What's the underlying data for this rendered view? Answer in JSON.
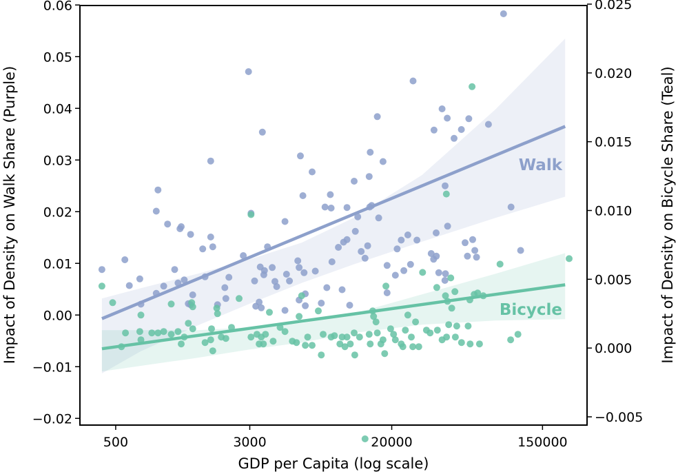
{
  "chart_data": {
    "type": "scatter",
    "title": "",
    "xlabel": "GDP per Capita (log scale)",
    "ylabel_left": "Impact of Density on Walk Share (Purple)",
    "ylabel_right": "Impact of Density on Bicycle Share (Teal)",
    "x_scale": "log",
    "xlim": [
      310,
      272000
    ],
    "ylim_left": [
      -0.0213,
      0.0599
    ],
    "ylim_right": [
      -0.0056,
      0.0249
    ],
    "x_ticks": [
      500,
      3000,
      20000,
      150000
    ],
    "x_tick_labels": [
      "500",
      "3000",
      "20000",
      "150000"
    ],
    "y_left_ticks": [
      -0.02,
      -0.01,
      0.0,
      0.01,
      0.02,
      0.03,
      0.04,
      0.05,
      0.06
    ],
    "y_left_tick_labels": [
      "−0.02",
      "−0.01",
      "0.00",
      "0.01",
      "0.02",
      "0.03",
      "0.04",
      "0.05",
      "0.06"
    ],
    "y_right_ticks": [
      -0.005,
      0.0,
      0.005,
      0.01,
      0.015,
      0.02,
      0.025
    ],
    "y_right_tick_labels": [
      "−0.005",
      "0.000",
      "0.005",
      "0.010",
      "0.015",
      "0.020",
      "0.025"
    ],
    "grid": false,
    "legend": "inline labels at right end of regression lines",
    "colors": {
      "walk": "#8da0cb",
      "bicycle": "#66c2a5"
    },
    "series": [
      {
        "name": "Walk",
        "axis": "left",
        "label": "Walk",
        "regression": {
          "x": [
            416,
            203000
          ],
          "y": [
            -0.0007,
            0.0365
          ]
        },
        "ci_band": {
          "x": [
            416,
            700,
            1500,
            3000,
            6000,
            12000,
            30000,
            80000,
            203000
          ],
          "lower": [
            -0.0113,
            -0.007,
            -0.002,
            0.0022,
            0.0062,
            0.0098,
            0.0142,
            0.0188,
            0.0229
          ],
          "upper": [
            0.0032,
            0.0052,
            0.008,
            0.0108,
            0.014,
            0.0188,
            0.0271,
            0.0398,
            0.0535
          ]
        },
        "points": [
          [
            416,
            0.0088
          ],
          [
            565,
            0.0107
          ],
          [
            600,
            0.0057
          ],
          [
            690,
            0.007
          ],
          [
            700,
            0.0021
          ],
          [
            860,
            0.0042
          ],
          [
            860,
            0.0201
          ],
          [
            880,
            0.0242
          ],
          [
            950,
            0.0056
          ],
          [
            1000,
            0.0176
          ],
          [
            1100,
            0.0088
          ],
          [
            1150,
            0.0062
          ],
          [
            1180,
            0.0167
          ],
          [
            1200,
            0.0171
          ],
          [
            1250,
            0.0068
          ],
          [
            1320,
            0.0022
          ],
          [
            1360,
            0.0156
          ],
          [
            1360,
            0.002
          ],
          [
            1400,
            0.0039
          ],
          [
            1600,
            0.0128
          ],
          [
            1650,
            0.0074
          ],
          [
            1780,
            0.0151
          ],
          [
            1780,
            0.0298
          ],
          [
            1830,
            0.0132
          ],
          [
            1950,
            0.002
          ],
          [
            2150,
            0.0053
          ],
          [
            2180,
            0.0032
          ],
          [
            2270,
            0.0073
          ],
          [
            2750,
            0.0115
          ],
          [
            2950,
            0.0471
          ],
          [
            3050,
            0.0197
          ],
          [
            3200,
            0.0066
          ],
          [
            3250,
            0.0017
          ],
          [
            3400,
            0.0025
          ],
          [
            3450,
            0.0093
          ],
          [
            3500,
            0.0014
          ],
          [
            3550,
            0.0354
          ],
          [
            3620,
            0.0078
          ],
          [
            3650,
            0.0086
          ],
          [
            3800,
            0.0132
          ],
          [
            4050,
            0.0092
          ],
          [
            4200,
            0.0065
          ],
          [
            4300,
            0.0055
          ],
          [
            4800,
            0.0009
          ],
          [
            4800,
            0.0181
          ],
          [
            4900,
            0.0079
          ],
          [
            5100,
            0.0066
          ],
          [
            5700,
            0.0105
          ],
          [
            5800,
            0.0092
          ],
          [
            5800,
            0.0029
          ],
          [
            5900,
            0.0308
          ],
          [
            6100,
            0.0231
          ],
          [
            6200,
            0.0082
          ],
          [
            6300,
            0.0041
          ],
          [
            6300,
            0.0018
          ],
          [
            6900,
            0.0277
          ],
          [
            7200,
            0.0085
          ],
          [
            7800,
            0.0023
          ],
          [
            8200,
            0.0209
          ],
          [
            8400,
            0.0053
          ],
          [
            8800,
            0.0233
          ],
          [
            8900,
            0.0207
          ],
          [
            9000,
            0.0103
          ],
          [
            9800,
            0.0131
          ],
          [
            10300,
            0.0049
          ],
          [
            10500,
            0.0141
          ],
          [
            11000,
            0.0146
          ],
          [
            11000,
            0.0208
          ],
          [
            11400,
            0.0019
          ],
          [
            12100,
            0.0259
          ],
          [
            12300,
            0.0162
          ],
          [
            12700,
            0.019
          ],
          [
            13300,
            0.0123
          ],
          [
            14000,
            0.011
          ],
          [
            14500,
            0.0134
          ],
          [
            14800,
            0.0268
          ],
          [
            14900,
            0.0209
          ],
          [
            15000,
            0.0315
          ],
          [
            15300,
            0.0212
          ],
          [
            16500,
            0.0384
          ],
          [
            16800,
            0.0188
          ],
          [
            17800,
            0.0297
          ],
          [
            18800,
            0.0096
          ],
          [
            18800,
            0.0043
          ],
          [
            21000,
            0.0077
          ],
          [
            21500,
            0.0128
          ],
          [
            22700,
            0.0145
          ],
          [
            23500,
            0.0086
          ],
          [
            24800,
            0.0155
          ],
          [
            25700,
            0.0098
          ],
          [
            26600,
            0.0453
          ],
          [
            28000,
            0.0145
          ],
          [
            33900,
            0.0119
          ],
          [
            35000,
            0.0108
          ],
          [
            35200,
            0.0358
          ],
          [
            36200,
            0.0159
          ],
          [
            36300,
            0.0114
          ],
          [
            37500,
            0.0082
          ],
          [
            39200,
            0.0399
          ],
          [
            40700,
            0.0067
          ],
          [
            40800,
            0.025
          ],
          [
            41000,
            0.008
          ],
          [
            42000,
            0.0381
          ],
          [
            42200,
            0.0172
          ],
          [
            46000,
            0.0342
          ],
          [
            50700,
            0.0359
          ],
          [
            53300,
            0.014
          ],
          [
            55000,
            0.0114
          ],
          [
            56000,
            0.038
          ],
          [
            59000,
            0.0146
          ],
          [
            60700,
            0.0125
          ],
          [
            62100,
            0.0112
          ],
          [
            72800,
            0.0369
          ],
          [
            89100,
            0.0583
          ],
          [
            98500,
            0.0209
          ],
          [
            112000,
            0.0125
          ]
        ]
      },
      {
        "name": "Bicycle",
        "axis": "right",
        "label": "Bicycle",
        "regression": {
          "x": [
            416,
            203000
          ],
          "y": [
            -5e-05,
            0.0046
          ]
        },
        "ci_band": {
          "x": [
            416,
            1500,
            3000,
            6000,
            12000,
            30000,
            80000,
            203000
          ],
          "lower": [
            -0.0017,
            -0.0007,
            -0.0001,
            0.0004,
            0.0011,
            0.0017,
            0.002,
            0.0021
          ],
          "upper": [
            0.0013,
            0.0013,
            0.0015,
            0.0018,
            0.0025,
            0.0039,
            0.0054,
            0.0069
          ]
        },
        "points": [
          [
            416,
            0.0045
          ],
          [
            480,
            0.0033
          ],
          [
            540,
            0.0001
          ],
          [
            570,
            0.0011
          ],
          [
            690,
            0.0012
          ],
          [
            700,
            0.0024
          ],
          [
            700,
            0.0006
          ],
          [
            810,
            0.0011
          ],
          [
            880,
            0.0011
          ],
          [
            950,
            0.0012
          ],
          [
            1050,
            0.001
          ],
          [
            1050,
            0.0032
          ],
          [
            1150,
            0.0012
          ],
          [
            1200,
            0.0003
          ],
          [
            1250,
            0.0008
          ],
          [
            1320,
            0.0018
          ],
          [
            1380,
            0.0033
          ],
          [
            1400,
            0.003
          ],
          [
            1400,
            0.0014
          ],
          [
            1650,
            0.0004
          ],
          [
            1780,
            0.0006
          ],
          [
            1800,
            0.0014
          ],
          [
            1830,
            -0.0002
          ],
          [
            1930,
            0.0029
          ],
          [
            1950,
            0.0025
          ],
          [
            2050,
            0.0008
          ],
          [
            2180,
            0.0007
          ],
          [
            2350,
            0.0015
          ],
          [
            2600,
            0.0036
          ],
          [
            3050,
            0.0097
          ],
          [
            3050,
            0.0008
          ],
          [
            3300,
            0.001
          ],
          [
            3400,
            0.0003
          ],
          [
            3500,
            0.0008
          ],
          [
            3600,
            0.0003
          ],
          [
            3700,
            0.001
          ],
          [
            3900,
            0.0026
          ],
          [
            4100,
            0.0005
          ],
          [
            4500,
            0.0015
          ],
          [
            4800,
            0.0012
          ],
          [
            5300,
            0.0005
          ],
          [
            5600,
            0.0004
          ],
          [
            5800,
            0.0023
          ],
          [
            6000,
            0.0038
          ],
          [
            6300,
            0.0002
          ],
          [
            6500,
            0.0008
          ],
          [
            6900,
            0.0002
          ],
          [
            7500,
            0.0027
          ],
          [
            7800,
            -0.0005
          ],
          [
            8000,
            0.001
          ],
          [
            8900,
            0.0008
          ],
          [
            9300,
            0.0009
          ],
          [
            10000,
            0.0003
          ],
          [
            10300,
            0.0008
          ],
          [
            10700,
            0.0001
          ],
          [
            11000,
            0.0008
          ],
          [
            11500,
            0.0003
          ],
          [
            12100,
            0.0011
          ],
          [
            12200,
            -0.0005
          ],
          [
            13000,
            0.0008
          ],
          [
            14000,
            -0.0066
          ],
          [
            14800,
            0.001
          ],
          [
            15000,
            0.0003
          ],
          [
            15500,
            0.0027
          ],
          [
            15700,
            0.0023
          ],
          [
            16200,
            0.0019
          ],
          [
            16500,
            0.0011
          ],
          [
            17300,
            0.0003
          ],
          [
            17800,
            0.0006
          ],
          [
            18200,
            -0.0004
          ],
          [
            18500,
            0.0045
          ],
          [
            19700,
            0.0014
          ],
          [
            20500,
            0.001
          ],
          [
            21000,
            0.0006
          ],
          [
            22700,
            0.0003
          ],
          [
            23200,
            0.0001
          ],
          [
            24000,
            0.0013
          ],
          [
            24800,
            0.0024
          ],
          [
            26000,
            0.0008
          ],
          [
            26500,
            0.0001
          ],
          [
            27500,
            0.0019
          ],
          [
            28700,
            0.0001
          ],
          [
            30200,
            0.0055
          ],
          [
            31800,
            0.0013
          ],
          [
            33400,
            0.0011
          ],
          [
            36500,
            0.0044
          ],
          [
            36800,
            0.0013
          ],
          [
            39200,
            0.0006
          ],
          [
            41000,
            0.0038
          ],
          [
            41500,
            0.0112
          ],
          [
            41600,
            0.0008
          ],
          [
            42100,
            0.0034
          ],
          [
            42800,
            0.0017
          ],
          [
            44000,
            0.0051
          ],
          [
            44600,
            0.0029
          ],
          [
            46500,
            0.0041
          ],
          [
            46800,
            0.0008
          ],
          [
            47700,
            0.0016
          ],
          [
            50800,
            0.0004
          ],
          [
            55500,
            0.0016
          ],
          [
            56800,
            0.0035
          ],
          [
            57000,
            0.0003
          ],
          [
            58500,
            0.019
          ],
          [
            60200,
            0.0039
          ],
          [
            63000,
            0.004
          ],
          [
            64600,
            0.0003
          ],
          [
            68000,
            0.0038
          ],
          [
            85000,
            0.0061
          ],
          [
            98000,
            0.0006
          ],
          [
            108000,
            0.001
          ],
          [
            214000,
            0.0065
          ]
        ]
      }
    ]
  }
}
